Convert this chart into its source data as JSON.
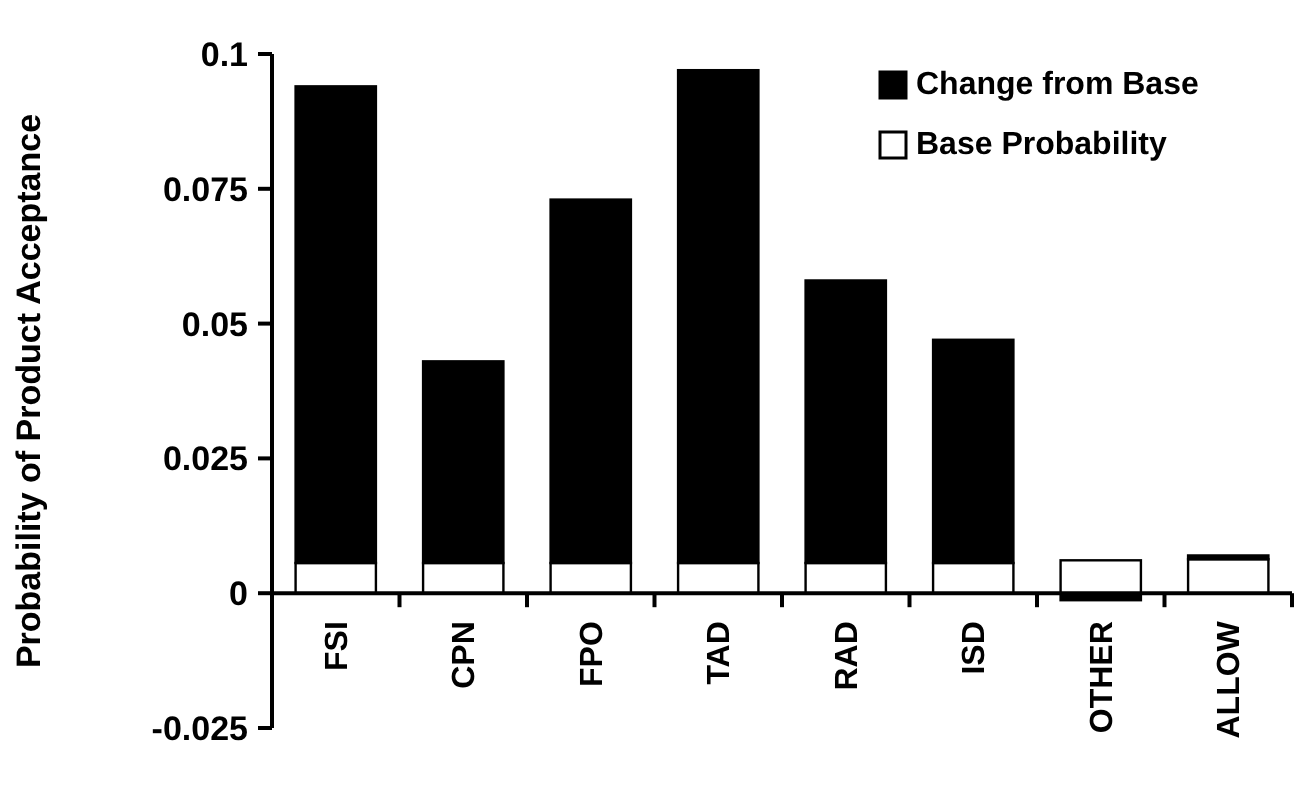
{
  "chart_data": {
    "type": "bar",
    "stacked": true,
    "ylabel": "Probability of Product Acceptance",
    "categories": [
      "FSI",
      "CPN",
      "FPO",
      "TAD",
      "RAD",
      "ISD",
      "OTHER",
      "ALLOW"
    ],
    "series": [
      {
        "name": "Base Probability",
        "color": "#ffffff",
        "values": [
          0.0056,
          0.0056,
          0.0056,
          0.0056,
          0.0056,
          0.0056,
          0.0061,
          0.0063
        ]
      },
      {
        "name": "Change from Base",
        "color": "#000000",
        "values": [
          0.0884,
          0.0374,
          0.0674,
          0.0914,
          0.0524,
          0.0414,
          -0.0013,
          0.0007
        ]
      }
    ],
    "ylim": [
      -0.025,
      0.1
    ],
    "yticks": [
      -0.025,
      0,
      0.025,
      0.05,
      0.075,
      0.1
    ],
    "legend": "top right",
    "grid": false
  }
}
